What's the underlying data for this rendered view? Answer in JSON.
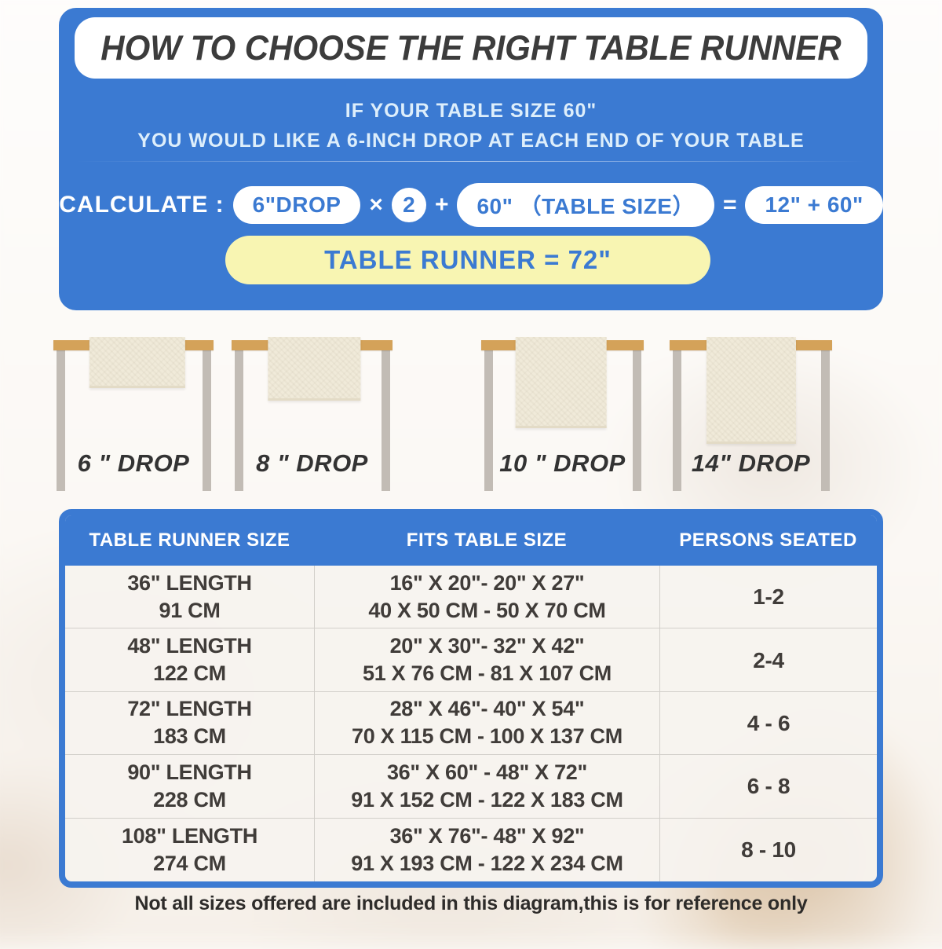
{
  "header": {
    "title": "HOW TO CHOOSE THE RIGHT TABLE RUNNER",
    "line1": "IF YOUR TABLE SIZE 60\"",
    "line2": "YOU WOULD LIKE A 6-INCH DROP AT EACH END OF YOUR TABLE"
  },
  "calculation": {
    "label": "CALCULATE :",
    "drop_pill": "6\"DROP",
    "times": "×",
    "multiplier": "2",
    "plus": "+",
    "table_size_pill": "60\" （TABLE SIZE）",
    "equals": "=",
    "sum_pill": "12\" + 60\"",
    "result": "TABLE RUNNER = 72\""
  },
  "figures": [
    {
      "label": "6 \" DROP",
      "drop_inches": 6
    },
    {
      "label": "8 \" DROP",
      "drop_inches": 8
    },
    {
      "label": "10 \" DROP",
      "drop_inches": 10
    },
    {
      "label": "14\" DROP",
      "drop_inches": 14
    }
  ],
  "size_table": {
    "headers": [
      "TABLE RUNNER SIZE",
      "FITS TABLE SIZE",
      "PERSONS SEATED"
    ],
    "rows": [
      {
        "runner_size": [
          "36\" LENGTH",
          "91 CM"
        ],
        "fits": [
          "16\" X 20\"- 20\" X 27\"",
          "40 X 50 CM - 50 X 70 CM"
        ],
        "persons": "1-2"
      },
      {
        "runner_size": [
          "48\" LENGTH",
          "122 CM"
        ],
        "fits": [
          "20\" X 30\"- 32\" X 42\"",
          "51 X 76 CM - 81 X 107 CM"
        ],
        "persons": "2-4"
      },
      {
        "runner_size": [
          "72\" LENGTH",
          "183 CM"
        ],
        "fits": [
          "28\" X 46\"- 40\" X 54\"",
          "70 X 115 CM - 100 X 137 CM"
        ],
        "persons": "4 - 6"
      },
      {
        "runner_size": [
          "90\" LENGTH",
          "228 CM"
        ],
        "fits": [
          "36\" X 60\" - 48\" X 72\"",
          "91 X 152 CM - 122 X 183 CM"
        ],
        "persons": "6 - 8"
      },
      {
        "runner_size": [
          "108\" LENGTH",
          "274 CM"
        ],
        "fits": [
          "36\" X 76\"- 48\" X 92\"",
          "91 X 193 CM - 122 X 234 CM"
        ],
        "persons": "8 - 10"
      }
    ]
  },
  "footer": {
    "note": "Not all sizes offered are included in this diagram,this is for reference only"
  },
  "colors": {
    "panel_blue": "#3b7ad2",
    "accent_yellow": "#f8f5b2",
    "tabletop_tan": "#d4a259",
    "leg_gray": "#c2bcb5",
    "runner_cream": "#f0ead9"
  }
}
